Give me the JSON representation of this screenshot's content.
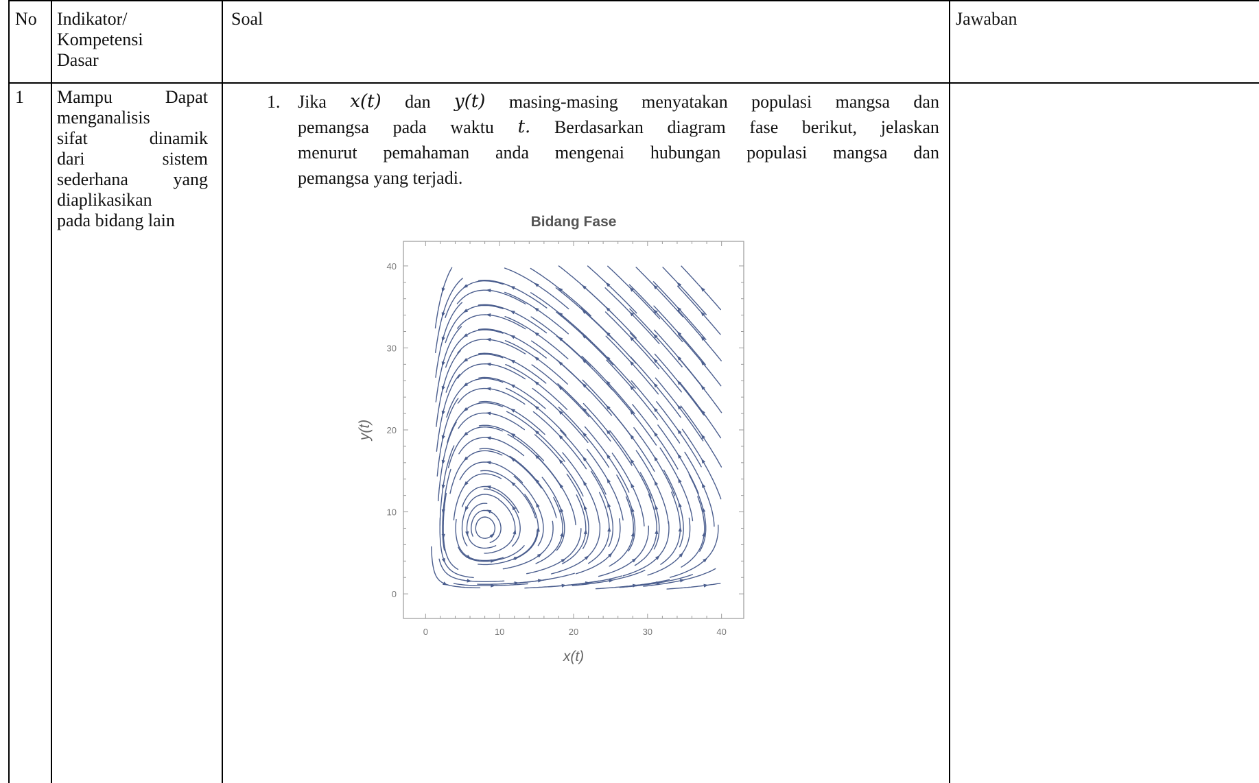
{
  "table": {
    "headers": {
      "no": "No",
      "indikator": [
        "Indikator/",
        "Kompetensi",
        "Dasar"
      ],
      "soal": "Soal",
      "jawaban": "Jawaban"
    },
    "row1": {
      "no": "1",
      "indikator_lines": [
        [
          "Mampu",
          "Dapat"
        ],
        [
          "menganalisis"
        ],
        [
          "sifat",
          "dinamik"
        ],
        [
          "dari",
          "sistem"
        ],
        [
          "sederhana",
          "yang"
        ],
        [
          "diaplikasikan"
        ],
        [
          "pada bidang lain"
        ]
      ],
      "question": {
        "number": "1.",
        "lines": [
          [
            "Jika",
            "x(t)",
            "dan",
            "y(t)",
            "masing-masing",
            "menyatakan",
            "populasi",
            "mangsa",
            "dan"
          ],
          [
            "pemangsa",
            "pada",
            "waktu",
            "t.",
            "Berdasarkan",
            "diagram",
            "fase",
            "berikut,",
            "jelaskan"
          ],
          [
            "menurut",
            "pemahaman",
            "anda",
            "mengenai",
            "hubungan",
            "populasi",
            "mangsa",
            "dan"
          ],
          [
            "pemangsa yang terjadi."
          ]
        ]
      }
    }
  },
  "chart_data": {
    "type": "streamplot",
    "title": "Bidang Fase",
    "xlabel": "x(t)",
    "ylabel": "y(t)",
    "xlim": [
      -3,
      43
    ],
    "ylim": [
      -3,
      43
    ],
    "xticks": [
      0,
      10,
      20,
      30,
      40
    ],
    "yticks": [
      0,
      10,
      20,
      30,
      40
    ],
    "frame": true,
    "grid": false,
    "equilibrium": [
      8,
      8
    ],
    "stream_color": "#4b5e8e",
    "title_color": "#555555",
    "description_of_streams": "trajectories spiral around the equilibrium; streams from upper-right flow leftward then downward along the y-axis"
  }
}
